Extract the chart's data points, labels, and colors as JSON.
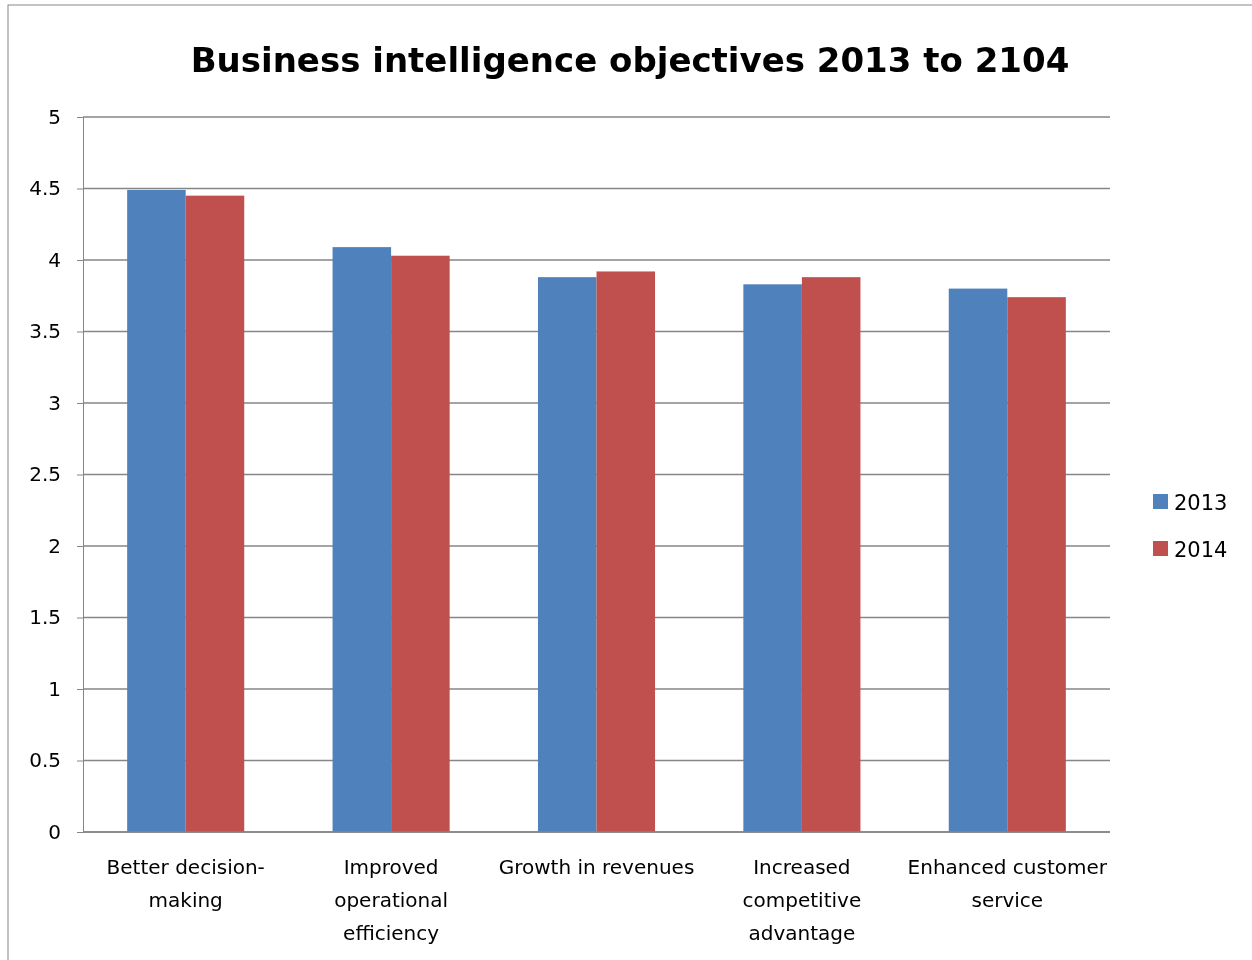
{
  "chart_data": {
    "type": "bar",
    "title": "Business intelligence objectives 2013 to 2104",
    "categories": [
      "Better decision-making",
      "Improved operational efficiency",
      "Growth in revenues",
      "Increased competitive advantage",
      "Enhanced customer service"
    ],
    "series": [
      {
        "name": "2013",
        "color": "#4f81bd",
        "values": [
          4.49,
          4.09,
          3.88,
          3.83,
          3.8
        ]
      },
      {
        "name": "2014",
        "color": "#c0504d",
        "values": [
          4.45,
          4.03,
          3.92,
          3.88,
          3.74
        ]
      }
    ],
    "ylim": [
      0,
      5
    ],
    "yticks": [
      0,
      0.5,
      1,
      1.5,
      2,
      2.5,
      3,
      3.5,
      4,
      4.5,
      5
    ],
    "grid": "y",
    "legend": "right"
  }
}
